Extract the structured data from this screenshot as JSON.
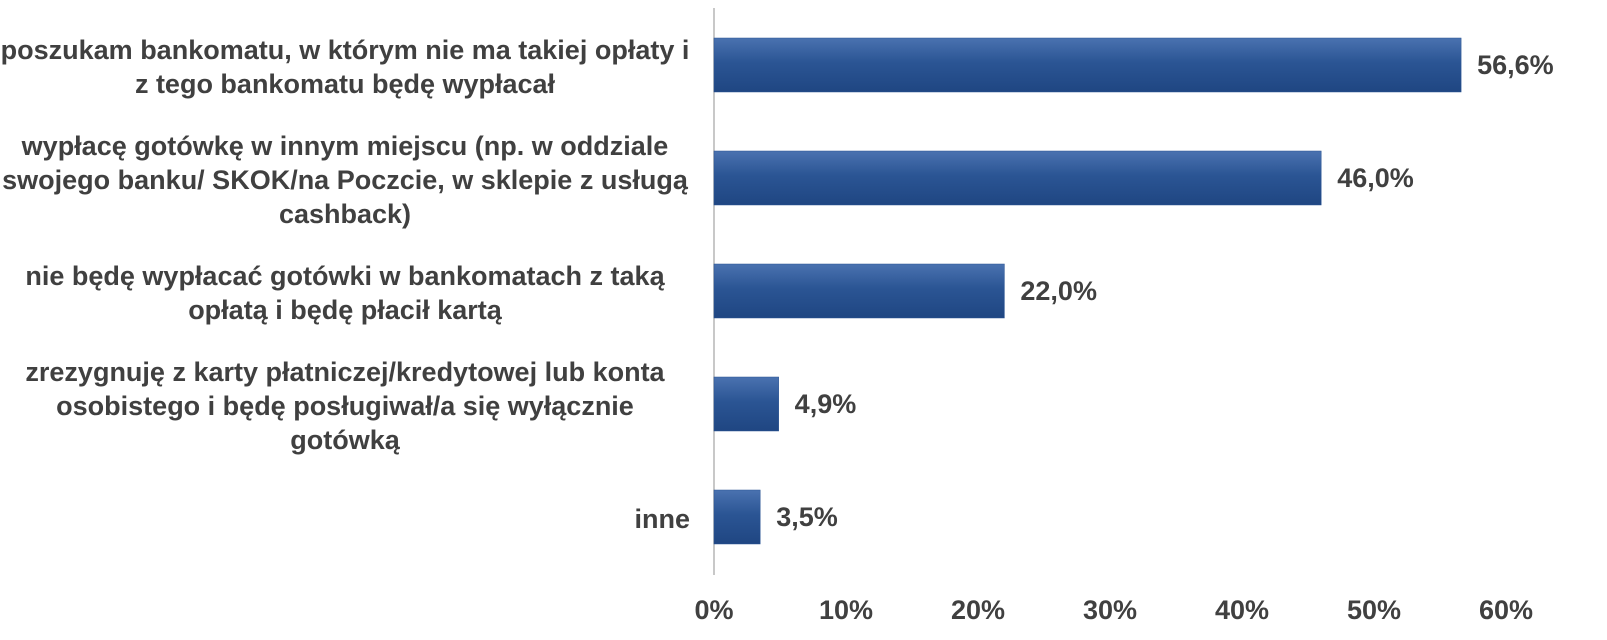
{
  "chart_data": {
    "type": "barh",
    "categories": [
      "poszukam bankomatu, w którym nie ma takiej opłaty i z tego bankomatu będę wypłacał",
      "wypłacę gotówkę w innym miejscu (np. w oddziale swojego banku/ SKOK/na Poczcie, w sklepie z usługą cashback)",
      "nie będę wypłacać gotówki w bankomatach z taką opłatą i będę płacił kartą",
      "zrezygnuję z karty płatniczej/kredytowej lub konta osobistego i będę posługiwał/a się wyłącznie gotówką",
      "inne"
    ],
    "values": [
      56.6,
      46.0,
      22.0,
      4.9,
      3.5
    ],
    "value_labels": [
      "56,6%",
      "46,0%",
      "22,0%",
      "4,9%",
      "3,5%"
    ],
    "color": "#2b5594",
    "xlim": [
      0,
      60
    ],
    "xticks": [
      {
        "value": 0,
        "label": "0%"
      },
      {
        "value": 10,
        "label": "10%"
      },
      {
        "value": 20,
        "label": "20%"
      },
      {
        "value": 30,
        "label": "30%"
      },
      {
        "value": 40,
        "label": "40%"
      },
      {
        "value": 50,
        "label": "50%"
      },
      {
        "value": 60,
        "label": "60%"
      }
    ],
    "grid": false
  }
}
